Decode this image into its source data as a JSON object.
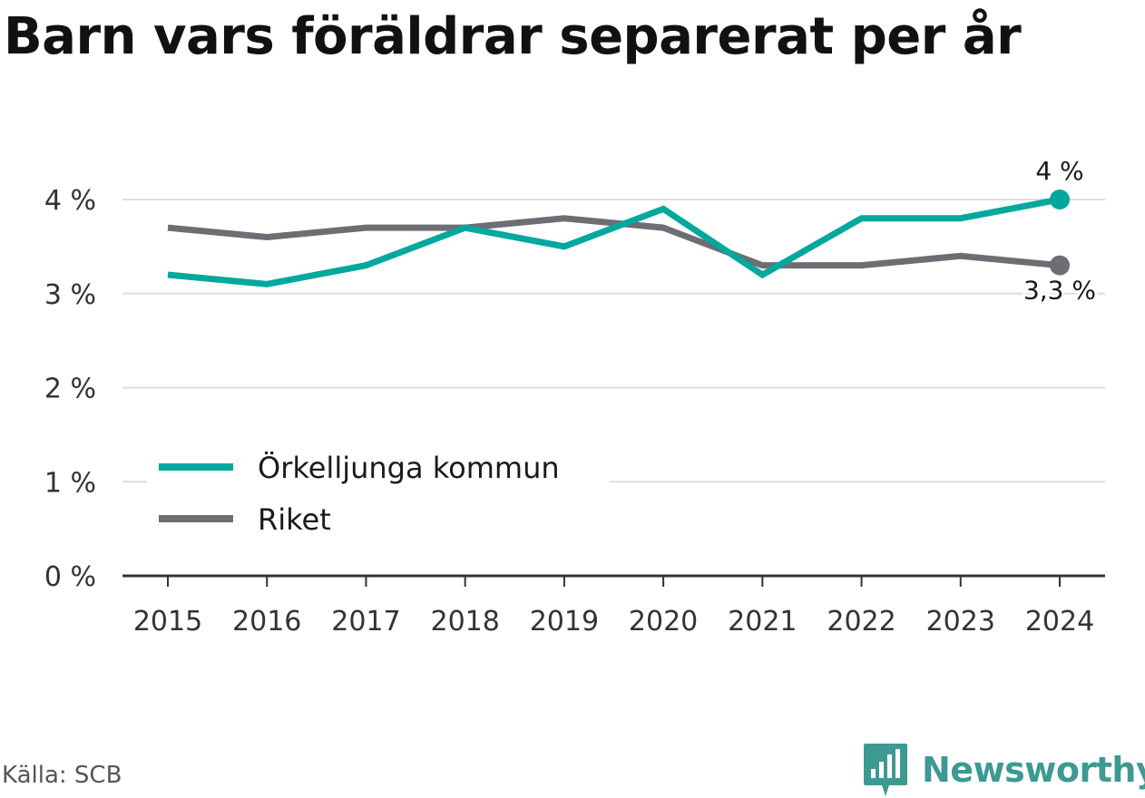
{
  "title": "Barn vars föräldrar separerat per år",
  "source": "Källa: SCB",
  "brand": {
    "name": "Newsworthy",
    "icon": "newsworthy-logo-icon",
    "color": "#3d9a93"
  },
  "colors": {
    "kommun": "#00a89d",
    "riket": "#6e6d73",
    "grid": "#dddddd",
    "axis": "#333333"
  },
  "chart_data": {
    "type": "line",
    "title": "Barn vars föräldrar separerat per år",
    "xlabel": "",
    "ylabel": "",
    "x": [
      "2015",
      "2016",
      "2017",
      "2018",
      "2019",
      "2020",
      "2021",
      "2022",
      "2023",
      "2024"
    ],
    "ylim": [
      0,
      4
    ],
    "yticks": [
      0,
      1,
      2,
      3,
      4
    ],
    "ytick_labels": [
      "0 %",
      "1 %",
      "2 %",
      "3 %",
      "4 %"
    ],
    "grid": true,
    "legend_position": "lower-left",
    "series": [
      {
        "name": "Örkelljunga kommun",
        "color": "#00a89d",
        "values": [
          3.2,
          3.1,
          3.3,
          3.7,
          3.5,
          3.9,
          3.2,
          3.8,
          3.8,
          4.0
        ],
        "end_label": "4 %"
      },
      {
        "name": "Riket",
        "color": "#6e6d73",
        "values": [
          3.7,
          3.6,
          3.7,
          3.7,
          3.8,
          3.7,
          3.3,
          3.3,
          3.4,
          3.3
        ],
        "end_label": "3,3 %"
      }
    ]
  }
}
